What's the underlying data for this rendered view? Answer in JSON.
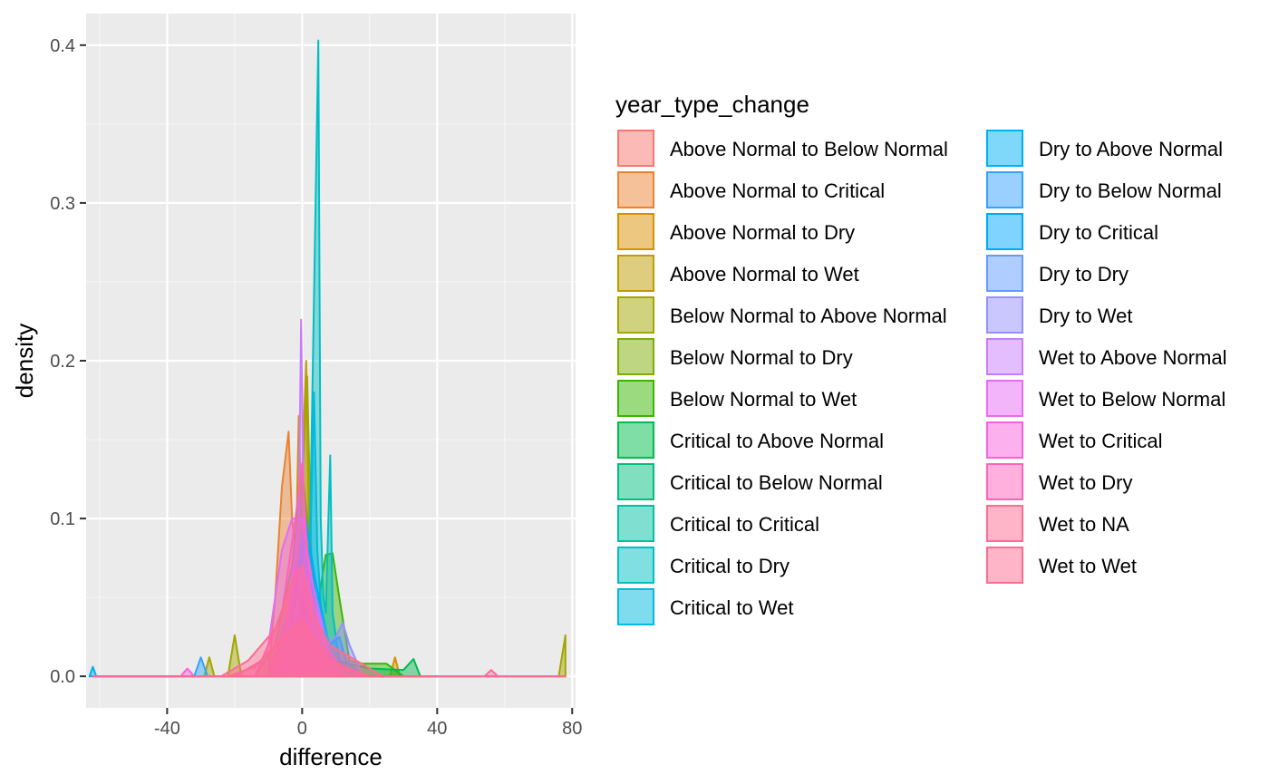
{
  "chart_data": {
    "type": "area",
    "subtype": "density",
    "xlabel": "difference",
    "ylabel": "density",
    "xlim": [
      -64,
      81
    ],
    "ylim": [
      -0.02,
      0.42
    ],
    "x_ticks": [
      -40,
      0,
      40,
      80
    ],
    "x_tick_labels": [
      "-40",
      "0",
      "40",
      "80"
    ],
    "y_ticks": [
      0.0,
      0.1,
      0.2,
      0.3,
      0.4
    ],
    "y_tick_labels": [
      "0.0",
      "0.1",
      "0.2",
      "0.3",
      "0.4"
    ],
    "panel_background": "#ebebeb",
    "grid": true,
    "legend": {
      "title": "year_type_change",
      "position": "right",
      "columns": 2
    },
    "series": [
      {
        "name": "Above Normal to Below Normal",
        "color": "#F8766D",
        "points": [
          [
            -62,
            0
          ],
          [
            -8,
            0
          ],
          [
            -4,
            0.02
          ],
          [
            -1,
            0.05
          ],
          [
            1,
            0.02
          ],
          [
            5,
            0
          ]
        ]
      },
      {
        "name": "Above Normal to Critical",
        "color": "#EA8331",
        "points": [
          [
            -62,
            0
          ],
          [
            -10,
            0
          ],
          [
            -8,
            0.05
          ],
          [
            -6,
            0.12
          ],
          [
            -4,
            0.155
          ],
          [
            -3,
            0.1
          ],
          [
            -1,
            0.06
          ],
          [
            2,
            0.02
          ],
          [
            6,
            0
          ]
        ]
      },
      {
        "name": "Above Normal to Dry",
        "color": "#D89000",
        "points": [
          [
            -62,
            0
          ],
          [
            -4,
            0
          ],
          [
            -2,
            0.06
          ],
          [
            -1,
            0.165
          ],
          [
            0,
            0.08
          ],
          [
            2,
            0.02
          ],
          [
            6,
            0
          ],
          [
            26,
            0
          ],
          [
            27.5,
            0.012
          ],
          [
            29,
            0
          ],
          [
            78,
            0
          ]
        ]
      },
      {
        "name": "Above Normal to Wet",
        "color": "#C09B00",
        "points": [
          [
            -62,
            0
          ],
          [
            -3,
            0
          ],
          [
            -1,
            0.05
          ],
          [
            0.5,
            0.16
          ],
          [
            1.2,
            0.2
          ],
          [
            2,
            0.1
          ],
          [
            3,
            0.03
          ],
          [
            6,
            0
          ]
        ]
      },
      {
        "name": "Below Normal to Above Normal",
        "color": "#A3A500",
        "points": [
          [
            -62,
            0
          ],
          [
            -29,
            0
          ],
          [
            -27.5,
            0.012
          ],
          [
            -26,
            0
          ],
          [
            -22,
            0
          ],
          [
            -20,
            0.026
          ],
          [
            -18,
            0
          ],
          [
            -6,
            0
          ],
          [
            -2,
            0.03
          ],
          [
            0,
            0.12
          ],
          [
            1.5,
            0.19
          ],
          [
            3,
            0.05
          ],
          [
            6,
            0
          ],
          [
            76,
            0
          ],
          [
            78,
            0.026
          ]
        ]
      },
      {
        "name": "Below Normal to Dry",
        "color": "#7CAE00",
        "points": [
          [
            -62,
            0
          ],
          [
            -14,
            0
          ],
          [
            -8,
            0.02
          ],
          [
            -3,
            0.07
          ],
          [
            0,
            0.13
          ],
          [
            2,
            0.09
          ],
          [
            5,
            0.03
          ],
          [
            10,
            0.008
          ],
          [
            20,
            0
          ]
        ]
      },
      {
        "name": "Below Normal to Wet",
        "color": "#39B600",
        "points": [
          [
            -62,
            0
          ],
          [
            -6,
            0
          ],
          [
            -2,
            0.04
          ],
          [
            0,
            0.08
          ],
          [
            2,
            0.05
          ],
          [
            5,
            0.05
          ],
          [
            7,
            0.077
          ],
          [
            9,
            0.078
          ],
          [
            11,
            0.05
          ],
          [
            14,
            0.01
          ],
          [
            18,
            0.008
          ],
          [
            25,
            0.008
          ],
          [
            30,
            0
          ]
        ]
      },
      {
        "name": "Critical to Above Normal",
        "color": "#00BB4E",
        "points": [
          [
            -62,
            0
          ],
          [
            -6,
            0
          ],
          [
            -2,
            0.03
          ],
          [
            0,
            0.06
          ],
          [
            4,
            0.03
          ],
          [
            10,
            0.01
          ],
          [
            20,
            0.005
          ],
          [
            30,
            0.004
          ],
          [
            33,
            0.011
          ],
          [
            35,
            0
          ],
          [
            40,
            0
          ]
        ]
      },
      {
        "name": "Critical to Below Normal",
        "color": "#00BF7D",
        "points": [
          [
            -62,
            0
          ],
          [
            -6,
            0
          ],
          [
            -2,
            0.03
          ],
          [
            0,
            0.08
          ],
          [
            2,
            0.06
          ],
          [
            6,
            0.02
          ],
          [
            12,
            0
          ]
        ]
      },
      {
        "name": "Critical to Critical",
        "color": "#00C1A3",
        "points": [
          [
            -62,
            0
          ],
          [
            -4,
            0
          ],
          [
            -1,
            0.04
          ],
          [
            1,
            0.07
          ],
          [
            3,
            0.04
          ],
          [
            6,
            0.01
          ],
          [
            10,
            0
          ]
        ]
      },
      {
        "name": "Critical to Dry",
        "color": "#00BFC4",
        "points": [
          [
            -62,
            0
          ],
          [
            -4,
            0
          ],
          [
            0,
            0.03
          ],
          [
            2,
            0.05
          ],
          [
            4.8,
            0.403
          ],
          [
            5.5,
            0.1
          ],
          [
            6.3,
            0.05
          ],
          [
            7,
            0.04
          ],
          [
            8.3,
            0.14
          ],
          [
            9,
            0.04
          ],
          [
            11,
            0.01
          ],
          [
            16,
            0
          ]
        ]
      },
      {
        "name": "Critical to Wet",
        "color": "#00BAE0",
        "points": [
          [
            -62,
            0
          ],
          [
            -5,
            0
          ],
          [
            0,
            0.04
          ],
          [
            2.5,
            0.09
          ],
          [
            3.5,
            0.18
          ],
          [
            4.5,
            0.08
          ],
          [
            6,
            0.03
          ],
          [
            9,
            0.01
          ],
          [
            14,
            0
          ]
        ]
      },
      {
        "name": "Dry to Above Normal",
        "color": "#00B0F6",
        "points": [
          [
            -63,
            0
          ],
          [
            -62,
            0.006
          ],
          [
            -61,
            0
          ],
          [
            -6,
            0
          ],
          [
            -2,
            0.05
          ],
          [
            0,
            0.09
          ],
          [
            3,
            0.06
          ],
          [
            7,
            0.02
          ],
          [
            10,
            0.008
          ],
          [
            14,
            0
          ]
        ]
      },
      {
        "name": "Dry to Below Normal",
        "color": "#35A2FF",
        "points": [
          [
            -62,
            0
          ],
          [
            -32,
            0
          ],
          [
            -30,
            0.012
          ],
          [
            -28,
            0
          ],
          [
            -10,
            0
          ],
          [
            -4,
            0.04
          ],
          [
            0,
            0.08
          ],
          [
            4,
            0.05
          ],
          [
            8,
            0.015
          ],
          [
            14,
            0
          ]
        ]
      },
      {
        "name": "Dry to Critical",
        "color": "#00A9FF",
        "points": [
          [
            -62,
            0
          ],
          [
            -6,
            0
          ],
          [
            -2,
            0.05
          ],
          [
            1,
            0.1
          ],
          [
            4,
            0.06
          ],
          [
            8,
            0.02
          ],
          [
            11,
            0.025
          ],
          [
            13,
            0.01
          ],
          [
            18,
            0
          ]
        ]
      },
      {
        "name": "Dry to Dry",
        "color": "#619CFF",
        "points": [
          [
            -62,
            0
          ],
          [
            -6,
            0
          ],
          [
            -2,
            0.03
          ],
          [
            1,
            0.08
          ],
          [
            4,
            0.05
          ],
          [
            8,
            0.02
          ],
          [
            12,
            0
          ]
        ]
      },
      {
        "name": "Dry to Wet",
        "color": "#9590FF",
        "points": [
          [
            -62,
            0
          ],
          [
            -6,
            0
          ],
          [
            -2,
            0.04
          ],
          [
            0,
            0.07
          ],
          [
            3,
            0.05
          ],
          [
            7,
            0.02
          ],
          [
            10,
            0.025
          ],
          [
            12,
            0.034
          ],
          [
            14,
            0.02
          ],
          [
            18,
            0
          ]
        ]
      },
      {
        "name": "Wet to Above Normal",
        "color": "#C77CFF",
        "points": [
          [
            -62,
            0
          ],
          [
            -8,
            0
          ],
          [
            -4,
            0.04
          ],
          [
            -1,
            0.1
          ],
          [
            -0.3,
            0.226
          ],
          [
            0.5,
            0.1
          ],
          [
            3,
            0.04
          ],
          [
            8,
            0.01
          ],
          [
            14,
            0
          ]
        ]
      },
      {
        "name": "Wet to Below Normal",
        "color": "#E76BF3",
        "points": [
          [
            -62,
            0
          ],
          [
            -14,
            0
          ],
          [
            -10,
            0.02
          ],
          [
            -6,
            0.08
          ],
          [
            -3,
            0.1
          ],
          [
            0,
            0.1
          ],
          [
            3,
            0.06
          ],
          [
            7,
            0.02
          ],
          [
            12,
            0
          ]
        ]
      },
      {
        "name": "Wet to Critical",
        "color": "#FA62DB",
        "points": [
          [
            -62,
            0
          ],
          [
            -36,
            0
          ],
          [
            -34,
            0.005
          ],
          [
            -32,
            0
          ],
          [
            -10,
            0
          ],
          [
            -5,
            0.03
          ],
          [
            -2,
            0.07
          ],
          [
            0,
            0.06
          ],
          [
            3,
            0.03
          ],
          [
            8,
            0.005
          ],
          [
            12,
            0
          ]
        ]
      },
      {
        "name": "Wet to Dry",
        "color": "#FF62BC",
        "points": [
          [
            -62,
            0
          ],
          [
            -20,
            0
          ],
          [
            -12,
            0.01
          ],
          [
            -6,
            0.04
          ],
          [
            -2,
            0.1
          ],
          [
            0,
            0.135
          ],
          [
            2,
            0.06
          ],
          [
            6,
            0.02
          ],
          [
            12,
            0.005
          ],
          [
            20,
            0
          ]
        ]
      },
      {
        "name": "Wet to NA",
        "color": "#FF6C91",
        "points": [
          [
            -62,
            0
          ],
          [
            -24,
            0
          ],
          [
            -16,
            0.01
          ],
          [
            -8,
            0.03
          ],
          [
            -3,
            0.06
          ],
          [
            0,
            0.07
          ],
          [
            3,
            0.04
          ],
          [
            8,
            0.02
          ],
          [
            16,
            0.01
          ],
          [
            24,
            0
          ],
          [
            54,
            0
          ],
          [
            56,
            0.004
          ],
          [
            58,
            0
          ],
          [
            78,
            0
          ]
        ]
      },
      {
        "name": "Wet to Wet",
        "color": "#FF6C91",
        "points": [
          [
            -62,
            0
          ],
          [
            -22,
            0
          ],
          [
            -14,
            0.006
          ],
          [
            -8,
            0.02
          ],
          [
            -3,
            0.03
          ],
          [
            0,
            0.035
          ],
          [
            3,
            0.025
          ],
          [
            8,
            0.01
          ],
          [
            14,
            0.005
          ],
          [
            20,
            0
          ]
        ]
      }
    ]
  }
}
